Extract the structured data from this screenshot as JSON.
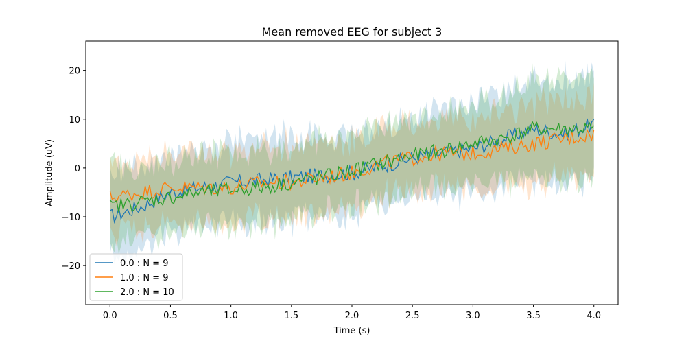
{
  "chart_data": {
    "type": "line",
    "title": "Mean removed EEG for subject 3",
    "xlabel": "Time (s)",
    "ylabel": "Amplitude (uV)",
    "xlim": [
      -0.2,
      4.2
    ],
    "ylim": [
      -28,
      26
    ],
    "x_ticks": [
      0.0,
      0.5,
      1.0,
      1.5,
      2.0,
      2.5,
      3.0,
      3.5,
      4.0
    ],
    "x_tick_labels": [
      "0.0",
      "0.5",
      "1.0",
      "1.5",
      "2.0",
      "2.5",
      "3.0",
      "3.5",
      "4.0"
    ],
    "y_ticks": [
      -20,
      -10,
      0,
      10,
      20
    ],
    "y_tick_labels": [
      "−20",
      "−10",
      "0",
      "10",
      "20"
    ],
    "grid": false,
    "legend_position": "bottom-left",
    "series": [
      {
        "name": "0.0 : N = 9",
        "color": "#1f77b4",
        "x": [
          0.0,
          0.25,
          0.5,
          0.75,
          1.0,
          1.25,
          1.5,
          1.75,
          2.0,
          2.25,
          2.5,
          2.75,
          3.0,
          3.25,
          3.5,
          3.75,
          4.0
        ],
        "mean": [
          -10,
          -8,
          -5,
          -4,
          -3,
          -2.5,
          -2,
          -1.5,
          -1,
          0.5,
          2,
          3,
          4,
          6,
          8,
          7,
          9
        ],
        "band_halfwidth": [
          9,
          8.5,
          8,
          8,
          8,
          8.5,
          9,
          8,
          8,
          8,
          8,
          8.5,
          9,
          10,
          11,
          11,
          11
        ]
      },
      {
        "name": "1.0 : N = 9",
        "color": "#ff7f0e",
        "x": [
          0.0,
          0.25,
          0.5,
          0.75,
          1.0,
          1.25,
          1.5,
          1.75,
          2.0,
          2.25,
          2.5,
          2.75,
          3.0,
          3.25,
          3.5,
          3.75,
          4.0
        ],
        "mean": [
          -6,
          -5,
          -4,
          -4,
          -4,
          -3,
          -3,
          -2,
          -1,
          1,
          2,
          3,
          3,
          4,
          5,
          6,
          7
        ],
        "band_halfwidth": [
          7,
          7,
          7,
          7,
          7,
          7.5,
          8,
          7.5,
          7,
          7,
          7,
          7,
          7,
          7.5,
          8,
          8,
          8
        ]
      },
      {
        "name": "2.0 : N = 10",
        "color": "#2ca02c",
        "x": [
          0.0,
          0.25,
          0.5,
          0.75,
          1.0,
          1.25,
          1.5,
          1.75,
          2.0,
          2.25,
          2.5,
          2.75,
          3.0,
          3.25,
          3.5,
          3.75,
          4.0
        ],
        "mean": [
          -8,
          -7,
          -6,
          -5,
          -4.5,
          -4,
          -3,
          -2,
          -0.5,
          1,
          2.5,
          3.5,
          5,
          6,
          8,
          8,
          8
        ],
        "band_halfwidth": [
          8,
          7.5,
          7.5,
          7.5,
          7.5,
          7.5,
          7.5,
          7.5,
          7.5,
          7.5,
          8,
          8,
          8.5,
          9,
          10,
          10,
          10
        ]
      }
    ]
  }
}
